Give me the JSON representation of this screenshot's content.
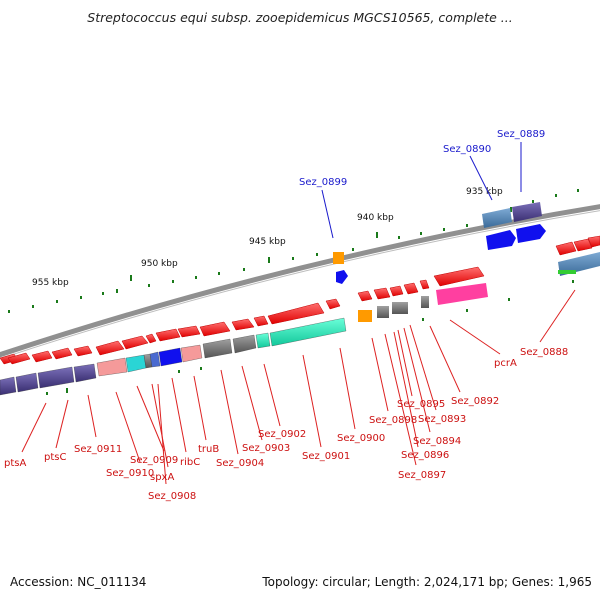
{
  "title": "Streptococcus equi subsp. zooepidemicus MGCS10565, complete ...",
  "accession": "Accession: NC_011134",
  "summary": "Topology: circular; Length: 2,024,171 bp; Genes: 1,965",
  "kbp_ticks": [
    "935 kbp",
    "940 kbp",
    "945 kbp",
    "950 kbp",
    "955 kbp"
  ],
  "labels_blue": [
    "Sez_0889",
    "Sez_0890",
    "Sez_0899"
  ],
  "labels_red": [
    "ptsA",
    "ptsC",
    "Sez_0911",
    "Sez_0910",
    "Sez_0909",
    "spxA",
    "Sez_0908",
    "ribC",
    "truB",
    "Sez_0904",
    "Sez_0903",
    "Sez_0902",
    "Sez_0901",
    "Sez_0900",
    "Sez_0898",
    "Sez_0897",
    "Sez_0896",
    "Sez_0895",
    "Sez_0894",
    "Sez_0893",
    "Sez_0892",
    "pcrA",
    "Sez_0888"
  ],
  "colors": {
    "forward": "#ff2020",
    "reverse_blue": "#1010ee",
    "purple": "#4a3f8a",
    "teal": "#21d6b0",
    "gray": "#777777",
    "pink": "#ff3fa0",
    "orange": "#ff9a00",
    "steel": "#4a7aa8",
    "label_red": "#cc1111",
    "label_blue": "#1a1acc"
  }
}
